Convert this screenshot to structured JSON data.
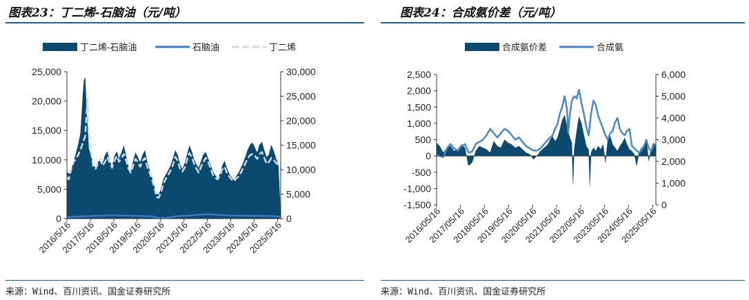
{
  "left": {
    "title": "图表23：丁二烯-石脑油（元/吨）",
    "source": "来源：Wind、百川资讯、国金证券研究所",
    "chart_data": {
      "type": "area",
      "legend_position": "top",
      "grid": false,
      "x_tick_labels": [
        "2016/5/16",
        "2017/5/16",
        "2018/5/16",
        "2019/5/16",
        "2020/5/16",
        "2021/5/16",
        "2022/5/16",
        "2023/5/16",
        "2024/5/16",
        "2025/5/16"
      ],
      "y_left": {
        "ticks": [
          "0",
          "5,000",
          "10,000",
          "15,000",
          "20,000",
          "25,000"
        ],
        "range": [
          0,
          25000
        ]
      },
      "y_right": {
        "ticks": [
          "0",
          "5,000",
          "10,000",
          "15,000",
          "20,000",
          "25,000",
          "30,000"
        ],
        "range": [
          0,
          30000
        ]
      },
      "series": [
        {
          "name": "丁二烯-石脑油",
          "type": "area",
          "axis": "left",
          "color": "#0b4a6e",
          "x": [
            2016.37,
            2016.45,
            2016.55,
            2016.65,
            2016.75,
            2016.85,
            2016.95,
            2017.0,
            2017.05,
            2017.1,
            2017.15,
            2017.2,
            2017.3,
            2017.4,
            2017.5,
            2017.6,
            2017.7,
            2017.8,
            2017.9,
            2018.0,
            2018.1,
            2018.2,
            2018.3,
            2018.4,
            2018.5,
            2018.6,
            2018.7,
            2018.8,
            2018.9,
            2019.0,
            2019.1,
            2019.2,
            2019.3,
            2019.4,
            2019.5,
            2019.6,
            2019.7,
            2019.8,
            2019.9,
            2020.0,
            2020.1,
            2020.2,
            2020.3,
            2020.4,
            2020.5,
            2020.6,
            2020.7,
            2020.8,
            2020.9,
            2021.0,
            2021.1,
            2021.2,
            2021.3,
            2021.4,
            2021.5,
            2021.6,
            2021.7,
            2021.8,
            2021.9,
            2022.0,
            2022.1,
            2022.2,
            2022.3,
            2022.4,
            2022.5,
            2022.6,
            2022.7,
            2022.8,
            2022.9,
            2023.0,
            2023.1,
            2023.2,
            2023.3,
            2023.4,
            2023.5,
            2023.6,
            2023.7,
            2023.8,
            2023.9,
            2024.0,
            2024.1,
            2024.2,
            2024.3,
            2024.4,
            2024.5,
            2024.6,
            2024.7,
            2024.8,
            2024.9,
            2025.0,
            2025.1,
            2025.2,
            2025.3,
            2025.4,
            2025.5
          ],
          "y": [
            8000,
            7600,
            8200,
            9500,
            11000,
            12500,
            14500,
            17500,
            21000,
            23500,
            24000,
            19000,
            12000,
            10500,
            9200,
            8500,
            9600,
            10200,
            9400,
            10800,
            11400,
            9800,
            8800,
            10600,
            11400,
            10200,
            11200,
            12400,
            10500,
            8700,
            8000,
            9800,
            11200,
            10400,
            9600,
            10800,
            11600,
            9600,
            8200,
            7000,
            5500,
            4200,
            4100,
            5200,
            6800,
            7500,
            8200,
            9000,
            10200,
            11600,
            10800,
            9200,
            8400,
            9400,
            10800,
            12400,
            11400,
            10000,
            9200,
            8600,
            9800,
            10900,
            11300,
            10200,
            9200,
            8000,
            7400,
            6800,
            7500,
            8900,
            9800,
            8600,
            7600,
            7000,
            6500,
            7200,
            7800,
            8600,
            9500,
            10600,
            11800,
            12600,
            12900,
            12000,
            11200,
            12600,
            13000,
            11600,
            10400,
            10900,
            12500,
            11500,
            10200,
            9000,
            300
          ]
        },
        {
          "name": "石脑油",
          "type": "line",
          "axis": "right",
          "color": "#3a78c0",
          "x": [
            2016.37,
            2017.0,
            2017.6,
            2018.3,
            2018.9,
            2019.5,
            2020.0,
            2020.3,
            2020.6,
            2021.0,
            2021.6,
            2022.0,
            2022.4,
            2022.8,
            2023.3,
            2023.9,
            2024.5,
            2025.0,
            2025.5
          ],
          "y": [
            300,
            450,
            560,
            650,
            620,
            520,
            480,
            120,
            150,
            450,
            640,
            780,
            900,
            780,
            640,
            600,
            560,
            520,
            400
          ]
        },
        {
          "name": "丁二烯",
          "type": "line",
          "axis": "right",
          "dashed": true,
          "color": "#c9dbee",
          "x": [
            2016.37,
            2016.45,
            2016.55,
            2016.65,
            2016.75,
            2016.85,
            2016.95,
            2017.05,
            2017.15,
            2017.25,
            2017.3,
            2017.4,
            2017.5,
            2017.6,
            2017.7,
            2017.8,
            2017.9,
            2018.0,
            2018.1,
            2018.2,
            2018.3,
            2018.4,
            2018.5,
            2018.6,
            2018.7,
            2018.8,
            2018.9,
            2019.0,
            2019.1,
            2019.2,
            2019.3,
            2019.4,
            2019.5,
            2019.6,
            2019.7,
            2019.8,
            2019.9,
            2020.0,
            2020.1,
            2020.2,
            2020.3,
            2020.4,
            2020.5,
            2020.6,
            2020.7,
            2020.8,
            2020.9,
            2021.0,
            2021.1,
            2021.2,
            2021.3,
            2021.4,
            2021.5,
            2021.6,
            2021.7,
            2021.8,
            2021.9,
            2022.0,
            2022.1,
            2022.2,
            2022.3,
            2022.4,
            2022.5,
            2022.6,
            2022.7,
            2022.8,
            2022.9,
            2023.0,
            2023.1,
            2023.2,
            2023.3,
            2023.4,
            2023.5,
            2023.6,
            2023.7,
            2023.8,
            2023.9,
            2024.0,
            2024.1,
            2024.2,
            2024.3,
            2024.4,
            2024.5,
            2024.6,
            2024.7,
            2024.8,
            2024.9,
            2025.0,
            2025.1,
            2025.2,
            2025.3,
            2025.4,
            2025.5
          ],
          "y": [
            8500,
            8000,
            10000,
            11500,
            12200,
            13000,
            14000,
            15500,
            16800,
            24800,
            17500,
            13500,
            10500,
            10200,
            11400,
            12000,
            10800,
            11600,
            12600,
            11400,
            10400,
            11800,
            12800,
            11600,
            12400,
            13200,
            11800,
            10200,
            9400,
            10800,
            12200,
            11600,
            10600,
            11800,
            12400,
            10600,
            9400,
            8000,
            6500,
            4400,
            4300,
            5500,
            7200,
            8200,
            9000,
            9800,
            11000,
            12600,
            11800,
            10200,
            9600,
            10400,
            12000,
            13400,
            12600,
            11200,
            10200,
            9400,
            10600,
            11600,
            12400,
            11600,
            10400,
            9000,
            8400,
            8000,
            8700,
            10000,
            10600,
            9400,
            8600,
            8000,
            7600,
            8200,
            8600,
            9400,
            10400,
            11400,
            12400,
            13000,
            13200,
            12800,
            12200,
            13200,
            13600,
            12400,
            11200,
            11600,
            12400,
            12000,
            11400,
            10800,
            10000
          ]
        }
      ]
    }
  },
  "right": {
    "title": "图表24：合成氨价差（元/吨）",
    "source": "来源：Wind、百川资讯、国金证券研究所",
    "chart_data": {
      "type": "area",
      "legend_position": "top",
      "grid": false,
      "x_tick_labels": [
        "2016/05/16",
        "2017/05/16",
        "2018/05/16",
        "2019/05/16",
        "2020/05/16",
        "2021/05/16",
        "2022/05/16",
        "2023/05/16",
        "2024/05/16",
        "2025/05/16"
      ],
      "y_left": {
        "ticks": [
          "-1,500",
          "-1,000",
          "-500",
          "0",
          "500",
          "1,000",
          "1,500",
          "2,000",
          "2,500"
        ],
        "range": [
          -1500,
          2500
        ]
      },
      "y_right": {
        "ticks": [
          "0",
          "1,000",
          "2,000",
          "3,000",
          "4,000",
          "5,000",
          "6,000"
        ],
        "range": [
          0,
          6000
        ]
      },
      "series": [
        {
          "name": "合成氨价差",
          "type": "area",
          "axis": "left",
          "color": "#0b4a6e",
          "x": [
            2016.37,
            2016.5,
            2016.65,
            2016.8,
            2016.95,
            2017.1,
            2017.25,
            2017.4,
            2017.55,
            2017.7,
            2017.85,
            2018.0,
            2018.15,
            2018.3,
            2018.45,
            2018.6,
            2018.75,
            2018.9,
            2019.05,
            2019.2,
            2019.35,
            2019.5,
            2019.65,
            2019.8,
            2019.95,
            2020.1,
            2020.25,
            2020.4,
            2020.55,
            2020.7,
            2020.85,
            2021.0,
            2021.1,
            2021.2,
            2021.3,
            2021.4,
            2021.5,
            2021.6,
            2021.7,
            2021.8,
            2021.9,
            2022.0,
            2022.05,
            2022.1,
            2022.2,
            2022.3,
            2022.4,
            2022.5,
            2022.6,
            2022.7,
            2022.75,
            2022.8,
            2022.9,
            2023.0,
            2023.1,
            2023.2,
            2023.3,
            2023.4,
            2023.5,
            2023.6,
            2023.7,
            2023.8,
            2023.9,
            2024.0,
            2024.1,
            2024.2,
            2024.3,
            2024.4,
            2024.5,
            2024.6,
            2024.7,
            2024.8,
            2024.9,
            2025.0,
            2025.1,
            2025.2,
            2025.3,
            2025.4,
            2025.5
          ],
          "y": [
            400,
            300,
            100,
            250,
            300,
            150,
            200,
            350,
            250,
            -300,
            -200,
            150,
            300,
            250,
            200,
            100,
            450,
            300,
            250,
            500,
            400,
            350,
            250,
            300,
            200,
            100,
            50,
            -100,
            0,
            150,
            250,
            350,
            500,
            600,
            450,
            550,
            800,
            1100,
            1250,
            900,
            600,
            400,
            -850,
            200,
            750,
            1200,
            1000,
            650,
            300,
            200,
            -900,
            100,
            250,
            150,
            300,
            200,
            350,
            -200,
            500,
            600,
            350,
            250,
            150,
            300,
            400,
            550,
            350,
            200,
            150,
            50,
            -300,
            100,
            250,
            300,
            500,
            -150,
            200,
            400,
            300
          ]
        },
        {
          "name": "合成氨",
          "type": "line",
          "axis": "right",
          "color": "#4a86c8",
          "x": [
            2016.37,
            2016.5,
            2016.65,
            2016.8,
            2016.95,
            2017.1,
            2017.25,
            2017.4,
            2017.55,
            2017.7,
            2017.85,
            2018.0,
            2018.15,
            2018.3,
            2018.45,
            2018.6,
            2018.75,
            2018.9,
            2019.05,
            2019.2,
            2019.35,
            2019.5,
            2019.65,
            2019.8,
            2019.95,
            2020.1,
            2020.25,
            2020.4,
            2020.55,
            2020.7,
            2020.85,
            2021.0,
            2021.1,
            2021.2,
            2021.3,
            2021.4,
            2021.5,
            2021.6,
            2021.7,
            2021.8,
            2021.85,
            2021.9,
            2022.0,
            2022.1,
            2022.2,
            2022.3,
            2022.4,
            2022.5,
            2022.6,
            2022.7,
            2022.8,
            2022.9,
            2023.0,
            2023.1,
            2023.2,
            2023.3,
            2023.4,
            2023.5,
            2023.6,
            2023.7,
            2023.8,
            2023.9,
            2024.0,
            2024.1,
            2024.2,
            2024.3,
            2024.4,
            2024.5,
            2024.6,
            2024.7,
            2024.8,
            2024.9,
            2025.0,
            2025.1,
            2025.2,
            2025.3,
            2025.4,
            2025.5
          ],
          "y": [
            2300,
            2250,
            2200,
            2600,
            2800,
            2600,
            2500,
            2700,
            2800,
            2400,
            2450,
            2800,
            2900,
            3000,
            3200,
            3500,
            3300,
            3100,
            3300,
            3500,
            3400,
            3200,
            3000,
            3100,
            2900,
            2700,
            2600,
            2500,
            2500,
            2600,
            2800,
            3000,
            3100,
            3200,
            3500,
            3700,
            4200,
            4500,
            5000,
            4400,
            3300,
            4000,
            4800,
            5000,
            4900,
            5300,
            4700,
            4200,
            3600,
            3200,
            4200,
            4800,
            4600,
            4100,
            3800,
            3500,
            3200,
            3000,
            3300,
            3400,
            3800,
            4000,
            3500,
            3300,
            3200,
            3400,
            3500,
            2700,
            2600,
            2500,
            2400,
            2500,
            2700,
            3000,
            2600,
            2500,
            2700,
            2800
          ]
        }
      ]
    }
  }
}
